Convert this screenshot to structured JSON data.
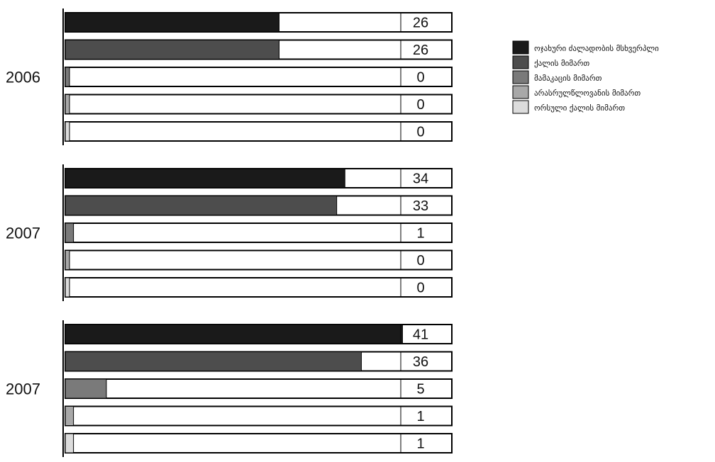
{
  "chart_data": {
    "type": "bar",
    "orientation": "horizontal",
    "groups": [
      "2006",
      "2007",
      "2007"
    ],
    "series": [
      {
        "name": "ოჯახური ძალადობის მსხვერპლი",
        "color": "#1a1a1a",
        "values": [
          26,
          34,
          41
        ]
      },
      {
        "name": "ქალის მიმართ",
        "color": "#4d4d4d",
        "values": [
          26,
          33,
          36
        ]
      },
      {
        "name": "მამაკაცის მიმართ",
        "color": "#7a7a7a",
        "values": [
          0,
          1,
          5
        ]
      },
      {
        "name": "არასრულწლოვანის მიმართ",
        "color": "#a8a8a8",
        "values": [
          0,
          0,
          1
        ]
      },
      {
        "name": "ორსული ქალის მიმართ",
        "color": "#dcdcdc",
        "values": [
          0,
          0,
          1
        ]
      }
    ],
    "xlim": [
      0,
      47
    ],
    "legend_position": "top-right",
    "grid": false
  }
}
